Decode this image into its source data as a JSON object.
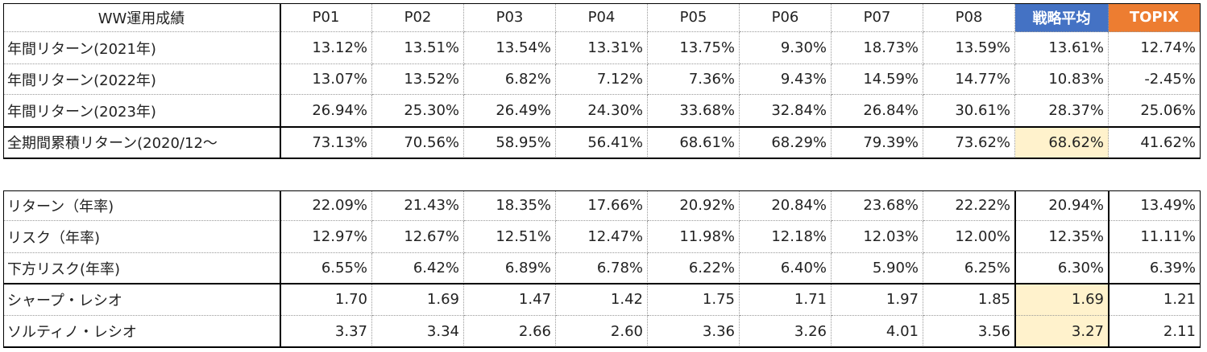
{
  "table1": {
    "header": [
      "WW運用成績",
      "P01",
      "P02",
      "P03",
      "P04",
      "P05",
      "P06",
      "P07",
      "P08",
      "戦略平均",
      "TOPIX"
    ],
    "rows": [
      [
        "年間リターン(2021年)",
        "13.12%",
        "13.51%",
        "13.54%",
        "13.31%",
        "13.75%",
        "9.30%",
        "18.73%",
        "13.59%",
        "13.61%",
        "12.74%"
      ],
      [
        "年間リターン(2022年)",
        "13.07%",
        "13.52%",
        "6.82%",
        "7.12%",
        "7.36%",
        "9.43%",
        "14.59%",
        "14.77%",
        "10.83%",
        "-2.45%"
      ],
      [
        "年間リターン(2023年)",
        "26.94%",
        "25.30%",
        "26.49%",
        "24.30%",
        "33.68%",
        "32.84%",
        "26.84%",
        "30.61%",
        "28.37%",
        "25.06%"
      ],
      [
        "全期間累積リターン(2020/12～",
        "73.13%",
        "70.56%",
        "58.95%",
        "56.41%",
        "68.61%",
        "68.29%",
        "79.39%",
        "73.62%",
        "68.62%",
        "41.62%"
      ]
    ]
  },
  "table2": {
    "rows": [
      [
        "リターン（年率)",
        "22.09%",
        "21.43%",
        "18.35%",
        "17.66%",
        "20.92%",
        "20.84%",
        "23.68%",
        "22.22%",
        "20.94%",
        "13.49%"
      ],
      [
        "リスク（年率)",
        "12.97%",
        "12.67%",
        "12.51%",
        "12.47%",
        "11.98%",
        "12.18%",
        "12.03%",
        "12.00%",
        "12.35%",
        "11.11%"
      ],
      [
        "下方リスク(年率)",
        "6.55%",
        "6.42%",
        "6.89%",
        "6.78%",
        "6.22%",
        "6.40%",
        "5.90%",
        "6.25%",
        "6.30%",
        "6.39%"
      ],
      [
        "シャープ・レシオ",
        "1.70",
        "1.69",
        "1.47",
        "1.42",
        "1.75",
        "1.71",
        "1.97",
        "1.85",
        "1.69",
        "1.21"
      ],
      [
        "ソルティノ・レシオ",
        "3.37",
        "3.34",
        "2.66",
        "2.60",
        "3.36",
        "3.26",
        "4.01",
        "3.56",
        "3.27",
        "2.11"
      ]
    ]
  }
}
